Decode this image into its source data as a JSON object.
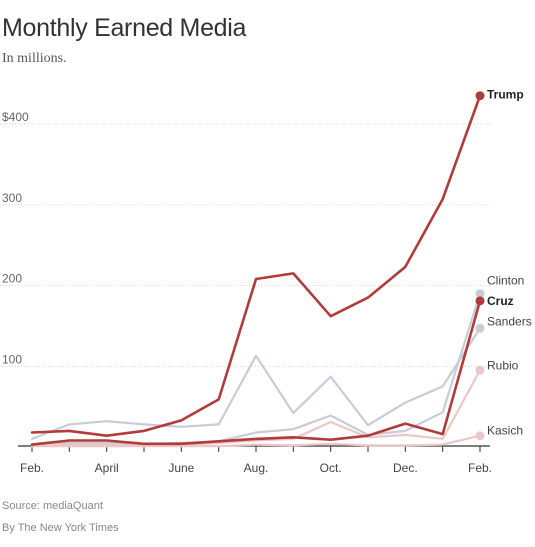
{
  "title": "Monthly Earned Media",
  "subtitle": "In millions.",
  "source": "Source: mediaQuant",
  "credit": "By The New York Times",
  "chart_data": {
    "type": "line",
    "title": "Monthly Earned Media",
    "subtitle": "In millions.",
    "ylim": [
      0,
      440
    ],
    "y_ticks": [
      {
        "value": 400,
        "label": "$400"
      },
      {
        "value": 300,
        "label": "300"
      },
      {
        "value": 200,
        "label": "200"
      },
      {
        "value": 100,
        "label": "100"
      }
    ],
    "x_tick_labels": [
      "Feb.",
      "",
      "April",
      "",
      "June",
      "",
      "Aug.",
      "",
      "Oct.",
      "",
      "Dec.",
      "",
      "Feb."
    ],
    "grid": true,
    "series": [
      {
        "name": "Sanders",
        "color": "#c8ccd8",
        "end_label": "Sanders",
        "bold": false,
        "values": [
          10,
          28,
          32,
          28,
          25,
          28,
          113,
          42,
          87,
          27,
          55,
          75,
          147
        ]
      },
      {
        "name": "Clinton",
        "color": "#c8ccd8",
        "end_label": "Clinton",
        "bold": false,
        "values": [
          3,
          5,
          5,
          4,
          5,
          7,
          18,
          22,
          39,
          15,
          20,
          43,
          190
        ]
      },
      {
        "name": "Kasich",
        "color": "#ebc8c8",
        "end_label": "Kasich",
        "bold": false,
        "values": [
          1,
          1,
          1,
          1,
          1,
          1,
          3,
          2,
          4,
          2,
          2,
          3,
          14
        ]
      },
      {
        "name": "Rubio",
        "color": "#ebc8c8",
        "end_label": "Rubio",
        "bold": false,
        "values": [
          2,
          3,
          3,
          2,
          3,
          5,
          8,
          10,
          31,
          12,
          15,
          10,
          95
        ]
      },
      {
        "name": "Cruz",
        "color": "#b13b3b",
        "end_label": "Cruz",
        "bold": true,
        "values": [
          3,
          8,
          8,
          4,
          4,
          7,
          10,
          12,
          9,
          14,
          29,
          16,
          181
        ]
      },
      {
        "name": "Trump",
        "color": "#b13b3b",
        "end_label": "Trump",
        "bold": true,
        "values": [
          18,
          20,
          14,
          20,
          33,
          59,
          208,
          215,
          162,
          185,
          223,
          307,
          435
        ]
      }
    ]
  }
}
